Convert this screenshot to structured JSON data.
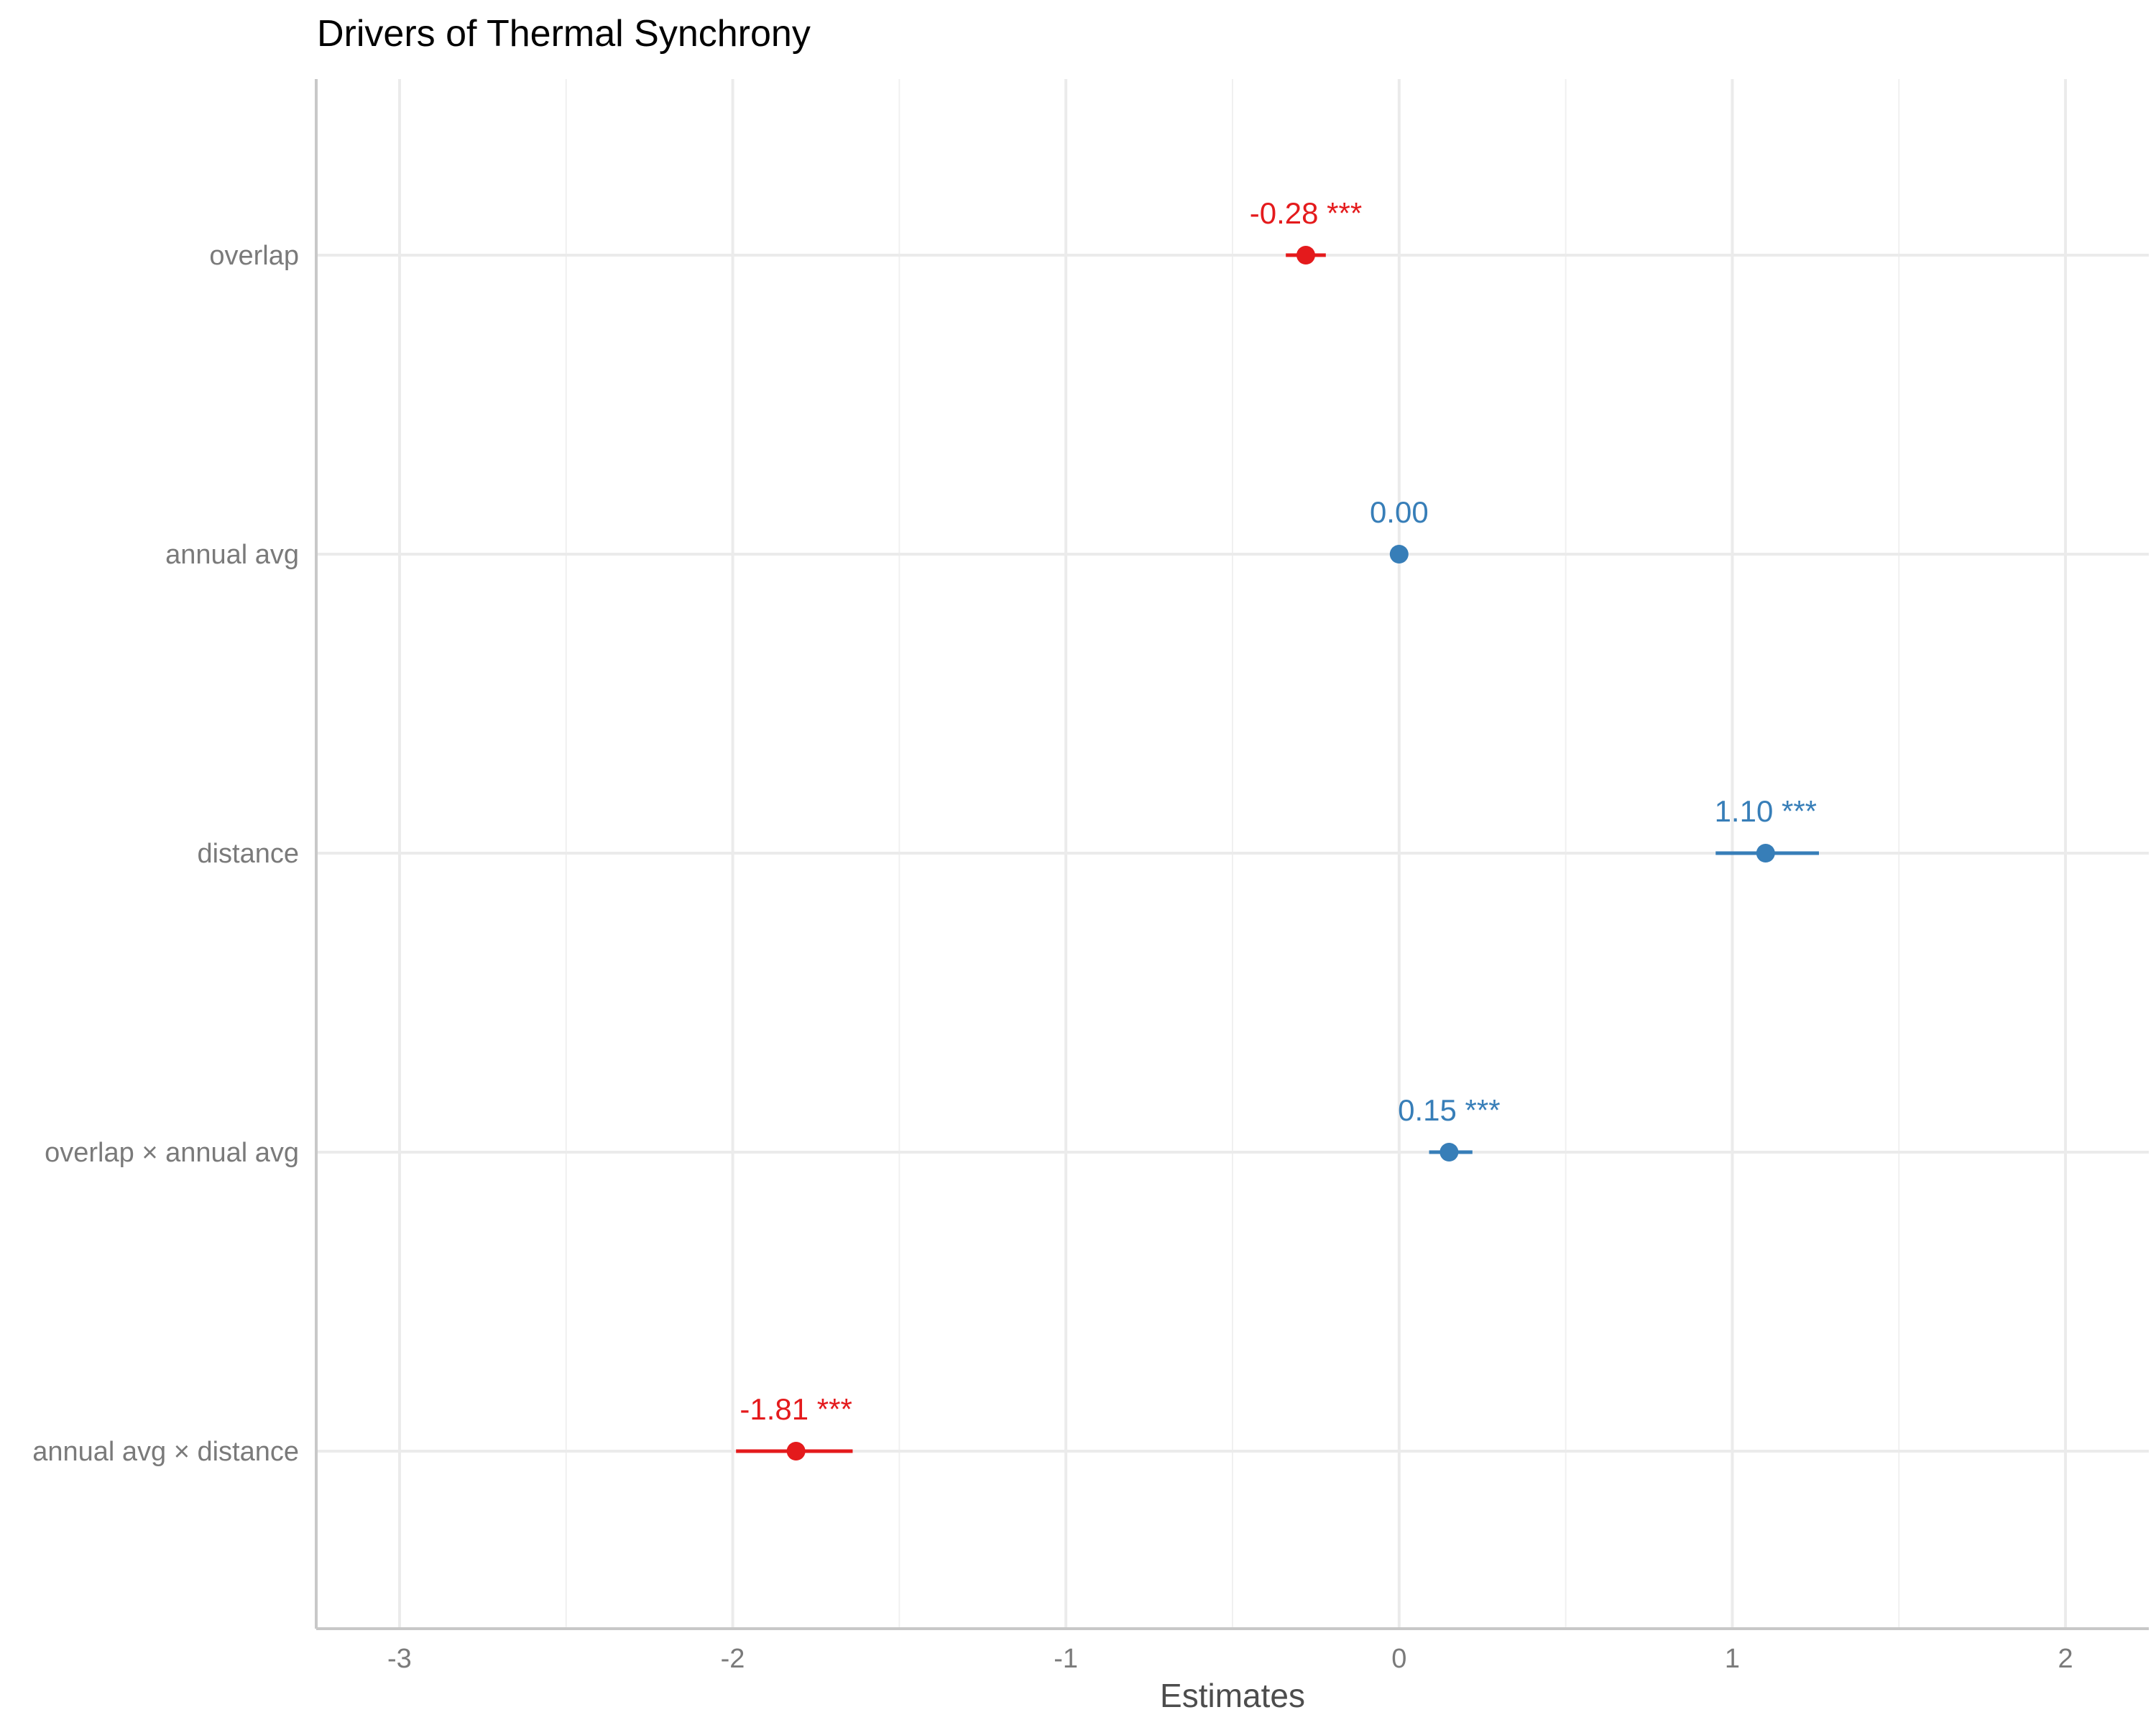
{
  "chart_data": {
    "type": "forest",
    "title": "Drivers of Thermal Synchrony",
    "xlabel": "Estimates",
    "ylabel": "",
    "xlim": [
      -3.25,
      2.25
    ],
    "x_ticks": [
      -3,
      -2,
      -1,
      0,
      1,
      2
    ],
    "x_tick_labels": [
      "-3",
      "-2",
      "-1",
      "0",
      "1",
      "2"
    ],
    "grid": true,
    "legend": "none",
    "colors": {
      "negative": "#e41a1c",
      "positive": "#377eb8"
    },
    "categories": [
      "overlap",
      "annual avg",
      "distance",
      "overlap × annual avg",
      "annual avg × distance"
    ],
    "estimates": [
      -0.28,
      0.0,
      1.1,
      0.15,
      -1.81
    ],
    "ci_low": [
      -0.34,
      0.0,
      0.95,
      0.09,
      -1.99
    ],
    "ci_high": [
      -0.22,
      0.0,
      1.26,
      0.22,
      -1.64
    ],
    "labels": [
      "-0.28 ***",
      "0.00",
      "1.10 ***",
      "0.15 ***",
      "-1.81 ***"
    ],
    "signs": [
      "negative",
      "positive",
      "positive",
      "positive",
      "negative"
    ]
  }
}
